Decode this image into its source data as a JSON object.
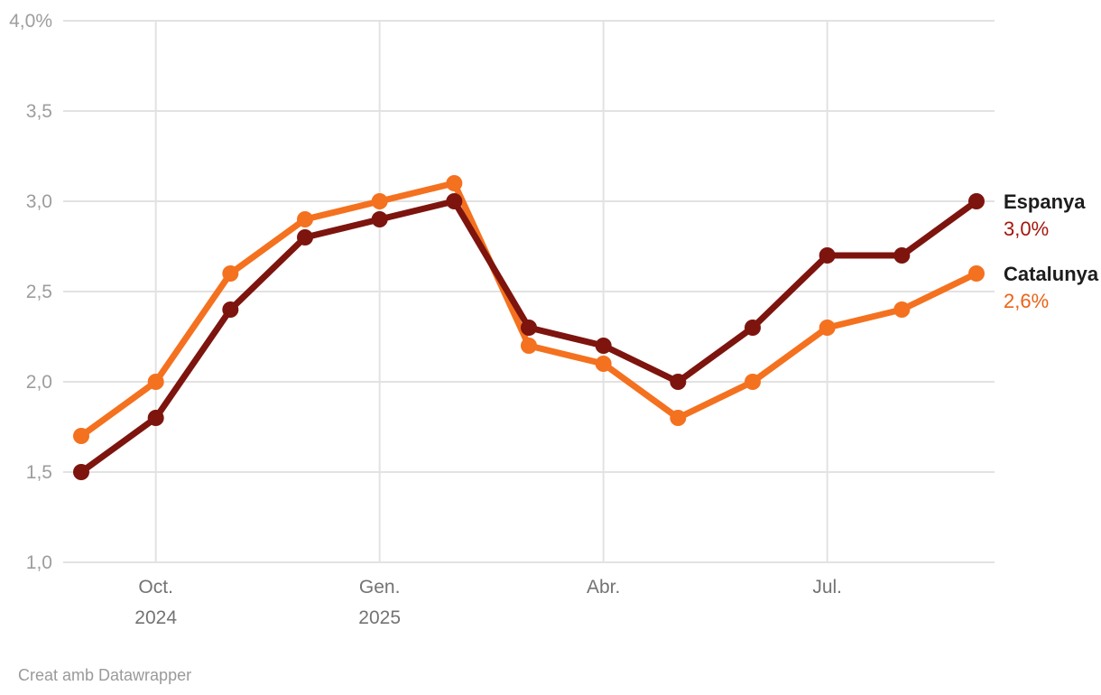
{
  "chart_data": {
    "type": "line",
    "x_count": 13,
    "x_ticks": [
      {
        "index": 1,
        "lines": [
          "Oct.",
          "2024"
        ]
      },
      {
        "index": 4,
        "lines": [
          "Gen.",
          "2025"
        ]
      },
      {
        "index": 7,
        "lines": [
          "Abr."
        ]
      },
      {
        "index": 10,
        "lines": [
          "Jul."
        ]
      }
    ],
    "y_ticks": [
      {
        "value": 4.0,
        "label": "4,0%"
      },
      {
        "value": 3.5,
        "label": "3,5"
      },
      {
        "value": 3.0,
        "label": "3,0"
      },
      {
        "value": 2.5,
        "label": "2,5"
      },
      {
        "value": 2.0,
        "label": "2,0"
      },
      {
        "value": 1.5,
        "label": "1,5"
      },
      {
        "value": 1.0,
        "label": "1,0"
      }
    ],
    "ylim": [
      1.0,
      4.0
    ],
    "grid": true,
    "legend_position": "right-of-last-point",
    "series": [
      {
        "name": "Espanya",
        "value_label": "3,0%",
        "color": "#7d140e",
        "value_color": "#a5160c",
        "values": [
          1.5,
          1.8,
          2.4,
          2.8,
          2.9,
          3.0,
          2.3,
          2.2,
          2.0,
          2.3,
          2.7,
          2.7,
          3.0
        ]
      },
      {
        "name": "Catalunya",
        "value_label": "2,6%",
        "color": "#f4711f",
        "value_color": "#ea6317",
        "values": [
          1.7,
          2.0,
          2.6,
          2.9,
          3.0,
          3.1,
          2.2,
          2.1,
          1.8,
          2.0,
          2.3,
          2.4,
          2.6
        ]
      }
    ]
  },
  "footer": {
    "credit": "Creat amb Datawrapper"
  },
  "colors": {
    "background": "#ffffff",
    "grid": "#e2e2e2",
    "y_label": "#9d9d9d",
    "x_label": "#737373",
    "series_name": "#1d1d1d",
    "footer": "#9a9a9a"
  }
}
